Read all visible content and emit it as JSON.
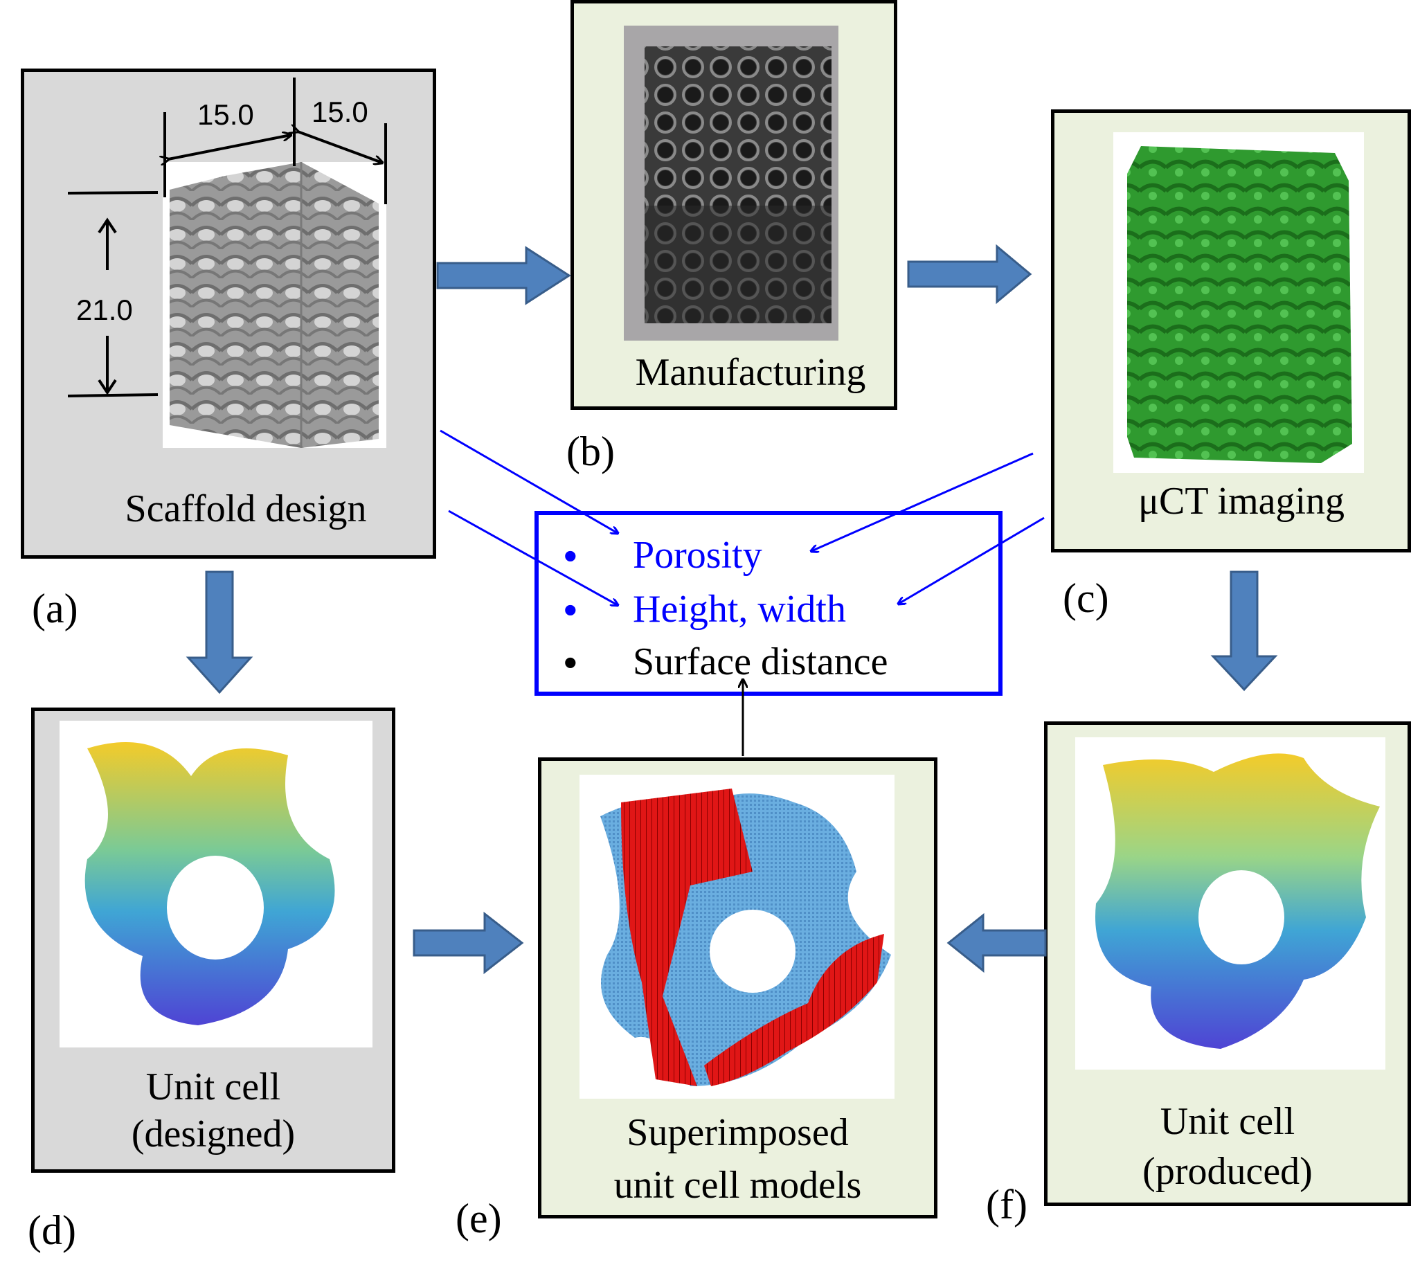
{
  "panels": {
    "a": {
      "caption": "Scaffold design",
      "label": "(a)",
      "dims": {
        "width_left": "15.0",
        "width_right": "15.0",
        "height": "21.0"
      }
    },
    "b": {
      "caption": "Manufacturing",
      "label": "(b)"
    },
    "c": {
      "caption": "μCT imaging",
      "label": "(c)"
    },
    "d": {
      "caption_line1": "Unit cell",
      "caption_line2": "(designed)",
      "label": "(d)"
    },
    "e": {
      "caption_line1": "Superimposed",
      "caption_line2": "unit cell models",
      "label": "(e)"
    },
    "f": {
      "caption_line1": "Unit cell",
      "caption_line2": "(produced)",
      "label": "(f)"
    }
  },
  "metrics": [
    {
      "bullet": "•",
      "text": "Porosity",
      "color": "#0000ff"
    },
    {
      "bullet": "•",
      "text": "Height, width",
      "color": "#0000ff"
    },
    {
      "bullet": "•",
      "text": "Surface distance",
      "color": "#000000"
    }
  ],
  "colors": {
    "gray_panel": "#d9d9d9",
    "green_panel": "#ebf1de",
    "arrow_fill": "#4f81bd",
    "arrow_stroke": "#385d8a",
    "pointer_blue": "#0000ff"
  }
}
